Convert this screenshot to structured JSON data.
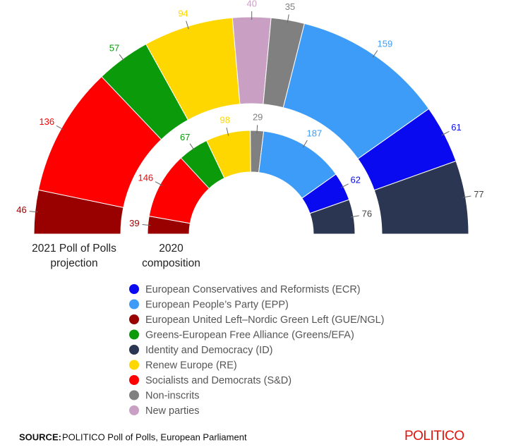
{
  "chart_data": [
    {
      "type": "semicircle",
      "title": "2021 Poll of Polls projection",
      "categories": [
        "European United Left–Nordic Green Left (GUE/NGL)",
        "Socialists and Democrats (S&D)",
        "Greens-European Free Alliance (Greens/EFA)",
        "Renew Europe (RE)",
        "New parties",
        "Non-inscrits",
        "European People’s Party  (EPP)",
        "European Conservatives and Reformists (ECR)",
        "Identity and Democracy (ID)"
      ],
      "values": [
        46,
        136,
        57,
        94,
        40,
        35,
        159,
        61,
        77
      ]
    },
    {
      "type": "semicircle",
      "title": "2020 composition",
      "categories": [
        "European United Left–Nordic Green Left (GUE/NGL)",
        "Socialists and Democrats (S&D)",
        "Greens-European Free Alliance (Greens/EFA)",
        "Renew Europe (RE)",
        "Non-inscrits",
        "European People’s Party  (EPP)",
        "European Conservatives and Reformists (ECR)",
        "Identity and Democracy (ID)"
      ],
      "values": [
        39,
        146,
        67,
        98,
        29,
        187,
        62,
        76
      ]
    }
  ],
  "legend": {
    "items": [
      "European Conservatives and Reformists (ECR)",
      "European People’s Party  (EPP)",
      "European United Left–Nordic Green Left (GUE/NGL)",
      "Greens-European Free Alliance (Greens/EFA)",
      "Identity and Democracy (ID)",
      "Renew Europe (RE)",
      "Socialists and Democrats (S&D)",
      "Non-inscrits",
      "New parties"
    ],
    "colors": [
      "#0a0af0",
      "#3d9cf7",
      "#990000",
      "#0a9a0a",
      "#2b3652",
      "#ffd700",
      "#ff0000",
      "#808080",
      "#c9a0c4"
    ]
  },
  "source_label": "SOURCE:",
  "source": "POLITICO Poll of Polls, European Parliament",
  "brand": "POLITICO"
}
